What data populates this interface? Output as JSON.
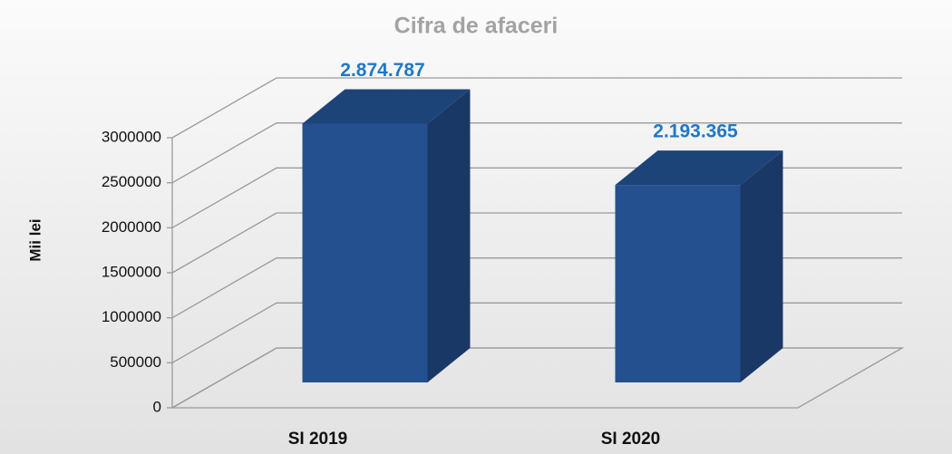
{
  "chart_data": {
    "type": "bar3d",
    "title": "Cifra de afaceri",
    "y_label": "Mii lei",
    "categories": [
      "SI 2019",
      "SI 2020"
    ],
    "values": [
      2874787,
      2193365
    ],
    "value_labels": [
      "2.874.787",
      "2.193.365"
    ],
    "color": "#24508f",
    "ylim": [
      0,
      3000000
    ],
    "yticks": [
      0,
      500000,
      1000000,
      1500000,
      2000000,
      2500000,
      3000000
    ],
    "grid": true
  }
}
